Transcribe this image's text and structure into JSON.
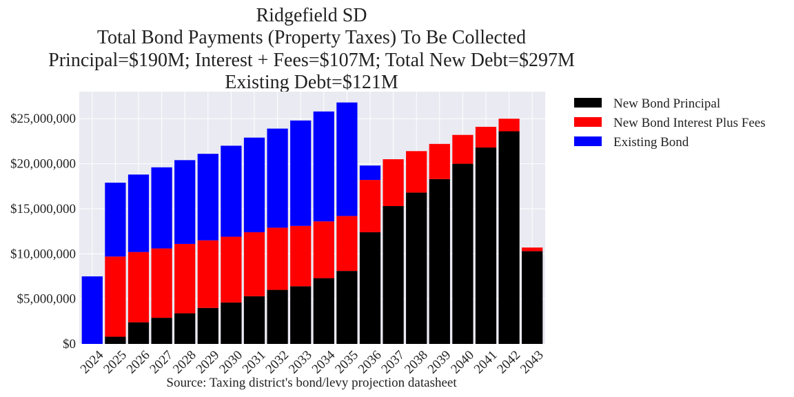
{
  "chart_data": {
    "type": "bar",
    "stacked": true,
    "title_lines": [
      "Ridgefield SD",
      "Total Bond Payments (Property Taxes) To Be Collected",
      "Principal=$190M; Interest + Fees=$107M; Total New Debt=$297M",
      "Existing Debt=$121M"
    ],
    "xlabel": "Source: Taxing district's bond/levy projection datasheet",
    "ylabel": "",
    "categories": [
      "2024",
      "2025",
      "2026",
      "2027",
      "2028",
      "2029",
      "2030",
      "2031",
      "2032",
      "2033",
      "2034",
      "2035",
      "2036",
      "2037",
      "2038",
      "2039",
      "2040",
      "2041",
      "2042",
      "2043"
    ],
    "ylim": [
      0,
      28000000
    ],
    "yticks": [
      0,
      5000000,
      10000000,
      15000000,
      20000000,
      25000000
    ],
    "ytick_labels": [
      "$0",
      "$5,000,000",
      "$10,000,000",
      "$15,000,000",
      "$20,000,000",
      "$25,000,000"
    ],
    "grid": true,
    "legend_position": "outside-top-right",
    "series": [
      {
        "name": "New Bond Principal",
        "color": "#000000",
        "values": [
          0,
          800000,
          2400000,
          2900000,
          3400000,
          4000000,
          4600000,
          5300000,
          6000000,
          6400000,
          7300000,
          8100000,
          12400000,
          15300000,
          16800000,
          18300000,
          20000000,
          21800000,
          23600000,
          10300000
        ]
      },
      {
        "name": "New Bond Interest Plus Fees",
        "color": "#ff0000",
        "values": [
          0,
          8900000,
          7800000,
          7700000,
          7700000,
          7500000,
          7300000,
          7100000,
          6900000,
          6700000,
          6300000,
          6100000,
          5800000,
          5200000,
          4600000,
          3900000,
          3200000,
          2300000,
          1400000,
          400000
        ]
      },
      {
        "name": "Existing Bond",
        "color": "#0000ff",
        "values": [
          7500000,
          8200000,
          8600000,
          9000000,
          9300000,
          9600000,
          10100000,
          10500000,
          11000000,
          11700000,
          12200000,
          12600000,
          1600000,
          0,
          0,
          0,
          0,
          0,
          0,
          0
        ]
      }
    ]
  }
}
